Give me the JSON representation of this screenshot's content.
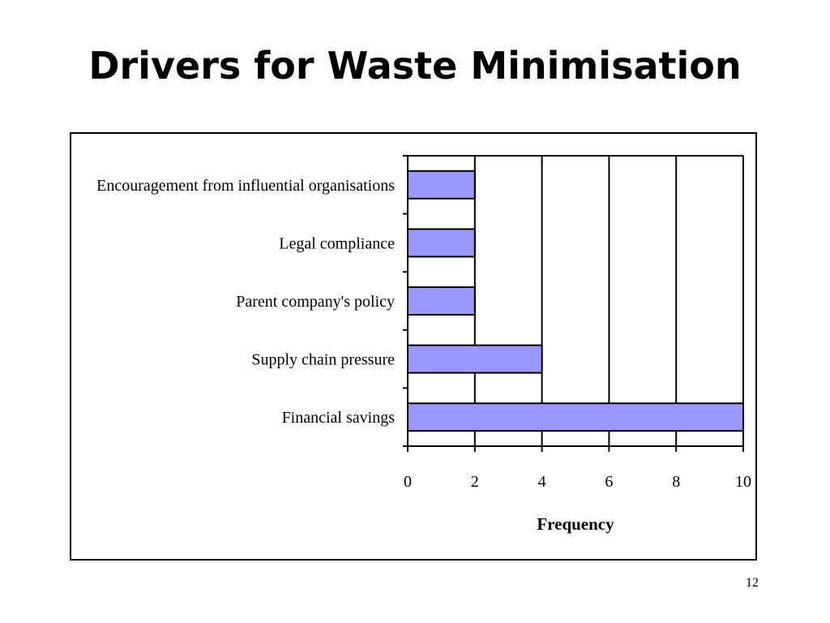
{
  "slide": {
    "title": "Drivers for Waste Minimisation",
    "page_number": "12"
  },
  "colors": {
    "bar_fill": "#9999ff",
    "bar_stroke": "#000000",
    "grid": "#000000"
  },
  "chart_data": {
    "type": "bar",
    "orientation": "horizontal",
    "categories": [
      "Encouragement from influential organisations",
      "Legal compliance",
      "Parent company's policy",
      "Supply chain pressure",
      "Financial savings"
    ],
    "values": [
      2,
      2,
      2,
      4,
      10
    ],
    "xlabel": "Frequency",
    "ylabel": "",
    "xlim": [
      0,
      10
    ],
    "xticks": [
      "0",
      "2",
      "4",
      "6",
      "8",
      "10"
    ],
    "grid": "vertical major gridlines",
    "legend": "none"
  }
}
